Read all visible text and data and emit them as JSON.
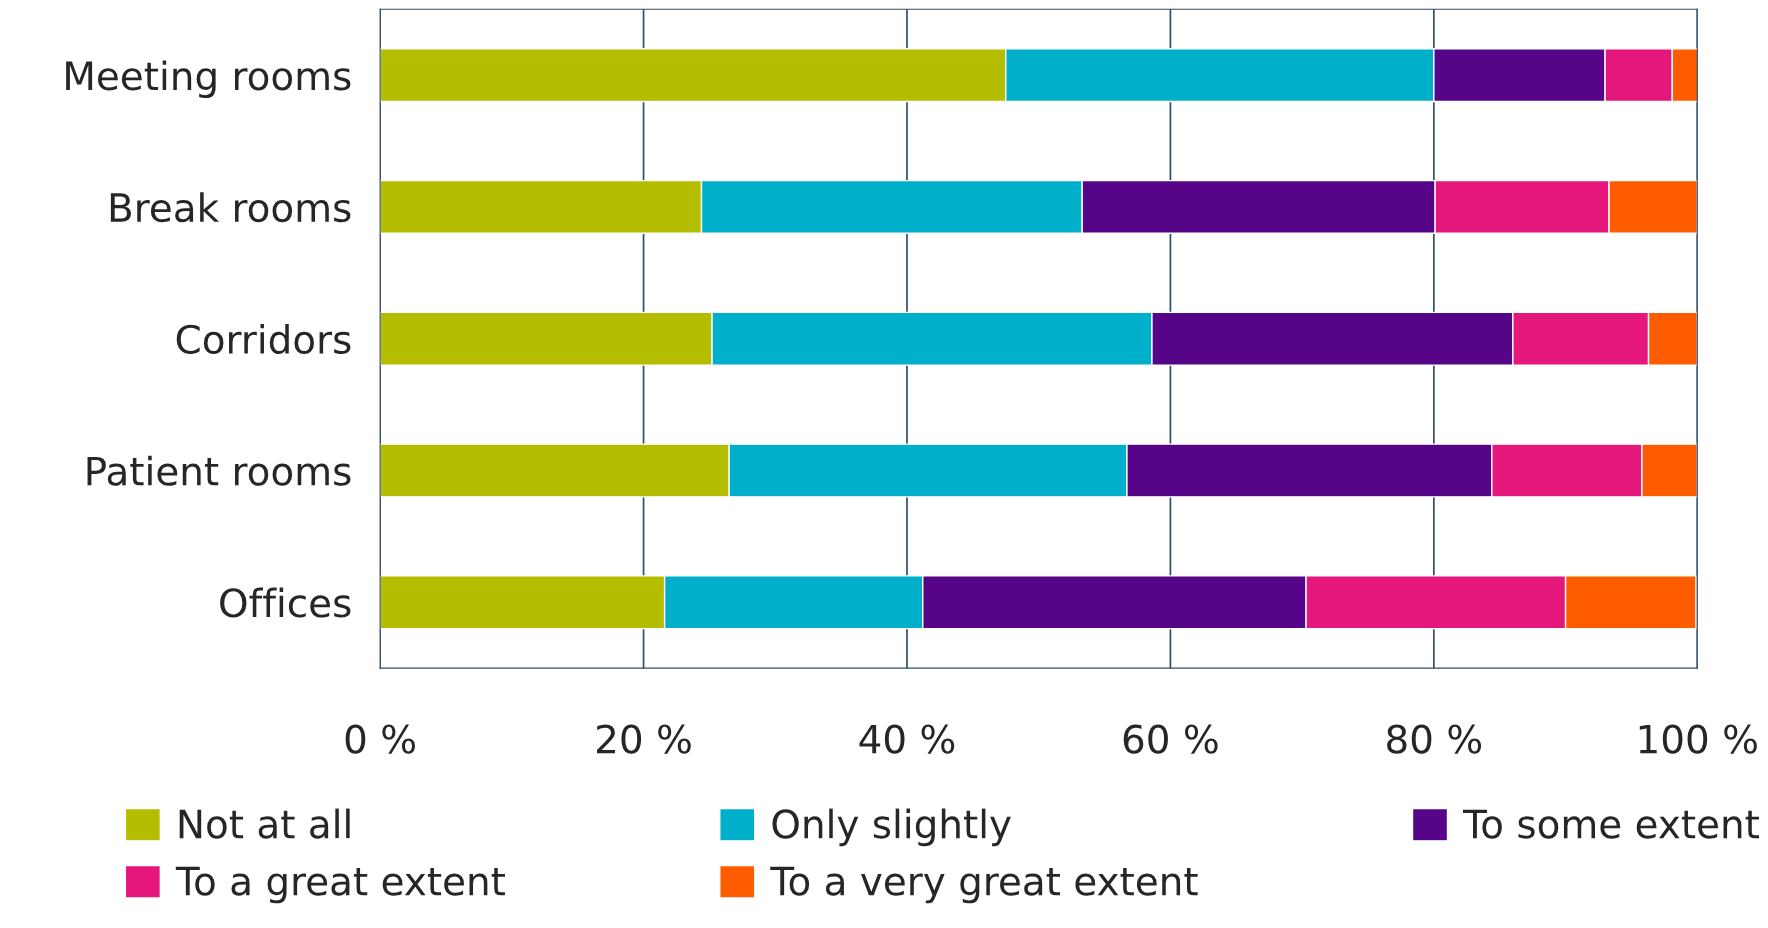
{
  "chart_data": {
    "type": "bar",
    "orientation": "horizontal",
    "stacked": true,
    "categories": [
      "Meeting rooms",
      "Break rooms",
      "Corridors",
      "Patient rooms",
      "Offices"
    ],
    "series": [
      {
        "name": "Not at all",
        "color": "#b5bd00",
        "values": [
          47.5,
          24.4,
          25.2,
          26.5,
          21.6
        ]
      },
      {
        "name": "Only slightly",
        "color": "#00afca",
        "values": [
          32.5,
          28.9,
          33.4,
          30.2,
          19.6
        ]
      },
      {
        "name": "To some extent",
        "color": "#560589",
        "values": [
          13.0,
          26.8,
          27.4,
          27.7,
          29.1
        ]
      },
      {
        "name": "To a great extent",
        "color": "#e5177a",
        "values": [
          5.1,
          13.2,
          10.3,
          11.4,
          19.7
        ]
      },
      {
        "name": "To a very great extent",
        "color": "#ff5c00",
        "values": [
          2.0,
          6.7,
          3.7,
          4.2,
          9.9
        ]
      }
    ],
    "xlim": [
      0,
      100
    ],
    "xticks": [
      {
        "value": 0,
        "label": "0 %"
      },
      {
        "value": 20,
        "label": "20 %"
      },
      {
        "value": 40,
        "label": "40 %"
      },
      {
        "value": 60,
        "label": "60 %"
      },
      {
        "value": 80,
        "label": "80 %"
      },
      {
        "value": 100,
        "label": "100 %"
      }
    ],
    "grid": "x",
    "legend": "bottom"
  }
}
